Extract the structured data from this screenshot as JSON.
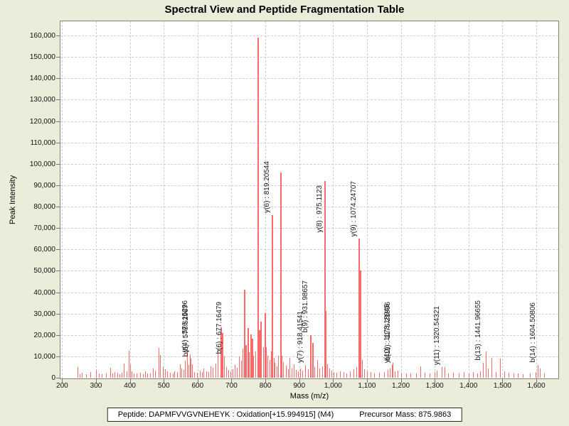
{
  "title": "Spectral View and Peptide Fragmentation Table",
  "footer": {
    "peptide": "Peptide: DAPMFVVGVNEHEYK : Oxidation[+15.994915] (M4)",
    "precursor": "Precursor Mass: 875.9863"
  },
  "chart_data": {
    "type": "bar",
    "subtype": "mass-spectrum-stick-plot",
    "title": "Spectral View and Peptide Fragmentation Table",
    "xlabel": "Mass (m/z)",
    "ylabel": "Peak Intensity",
    "xlim": [
      195,
      1665
    ],
    "ylim": [
      0,
      160000
    ],
    "x_ticks": [
      200,
      300,
      400,
      500,
      600,
      700,
      800,
      900,
      1000,
      1100,
      1200,
      1300,
      1400,
      1500,
      1600
    ],
    "y_ticks": [
      0,
      10000,
      20000,
      30000,
      40000,
      50000,
      60000,
      70000,
      80000,
      90000,
      100000,
      110000,
      120000,
      130000,
      140000,
      150000,
      160000
    ],
    "grid": "dashed",
    "legend": "none",
    "colors": {
      "peak": "#f96a6a",
      "plot_background": "#ffffff",
      "window_background": "#ececda",
      "gridline": "#cfcfcf",
      "frame": "#848474"
    },
    "annotated_peaks": [
      {
        "label": "y(4) : 576.15296",
        "mz": 576.15,
        "intensity": 11000
      },
      {
        "label": "b(5) : 578.52967",
        "mz": 578.53,
        "intensity": 9000
      },
      {
        "label": "b(6) : 677.16479",
        "mz": 677.16,
        "intensity": 10000
      },
      {
        "label": "y(6) : 819.20544",
        "mz": 819.21,
        "intensity": 76000
      },
      {
        "label": "y(7) : 918.41541",
        "mz": 918.42,
        "intensity": 6000
      },
      {
        "label": "b(9) : 931.98657",
        "mz": 931.99,
        "intensity": 20000
      },
      {
        "label": "y(8) : 975.1123",
        "mz": 975.11,
        "intensity": 92000,
        "label_base": 67000
      },
      {
        "label": "y(9) : 1074.24707",
        "mz": 1074.25,
        "intensity": 65000
      },
      {
        "label": "y(10) : 1173.18945",
        "mz": 1173.19,
        "intensity": 6000
      },
      {
        "label": "b(11) : 1175.21896",
        "mz": 1175.22,
        "intensity": 7000
      },
      {
        "label": "y(11) : 1320.54321",
        "mz": 1320.54,
        "intensity": 5000
      },
      {
        "label": "b(13) : 1441.96655",
        "mz": 1441.97,
        "intensity": 7000
      },
      {
        "label": "b(14) : 1604.50806",
        "mz": 1604.51,
        "intensity": 6000
      }
    ],
    "peaks": [
      [
        245,
        5000
      ],
      [
        252,
        1600
      ],
      [
        258,
        2300
      ],
      [
        270,
        1500
      ],
      [
        283,
        2600
      ],
      [
        300,
        3600
      ],
      [
        308,
        1900
      ],
      [
        316,
        1600
      ],
      [
        330,
        1900
      ],
      [
        342,
        4600
      ],
      [
        348,
        2100
      ],
      [
        355,
        2700
      ],
      [
        362,
        2300
      ],
      [
        369,
        1600
      ],
      [
        375,
        2300
      ],
      [
        382,
        6600
      ],
      [
        390,
        3100
      ],
      [
        397,
        12600
      ],
      [
        400,
        6200
      ],
      [
        404,
        3100
      ],
      [
        412,
        2100
      ],
      [
        420,
        1900
      ],
      [
        430,
        2300
      ],
      [
        438,
        1600
      ],
      [
        445,
        3100
      ],
      [
        452,
        2100
      ],
      [
        460,
        1900
      ],
      [
        468,
        4300
      ],
      [
        475,
        3300
      ],
      [
        485,
        14000
      ],
      [
        490,
        10600
      ],
      [
        497,
        5100
      ],
      [
        503,
        3900
      ],
      [
        510,
        2900
      ],
      [
        518,
        2300
      ],
      [
        526,
        1900
      ],
      [
        532,
        3100
      ],
      [
        540,
        2700
      ],
      [
        548,
        6300
      ],
      [
        553,
        4300
      ],
      [
        558,
        3500
      ],
      [
        563,
        8100
      ],
      [
        568,
        12600
      ],
      [
        572,
        6100
      ],
      [
        583,
        6300
      ],
      [
        590,
        2700
      ],
      [
        598,
        2300
      ],
      [
        606,
        3300
      ],
      [
        612,
        2700
      ],
      [
        618,
        4300
      ],
      [
        625,
        3100
      ],
      [
        632,
        2500
      ],
      [
        638,
        5300
      ],
      [
        645,
        4700
      ],
      [
        652,
        6600
      ],
      [
        660,
        13600
      ],
      [
        668,
        23600
      ],
      [
        671,
        21000
      ],
      [
        684,
        5100
      ],
      [
        690,
        3600
      ],
      [
        697,
        3100
      ],
      [
        703,
        4100
      ],
      [
        710,
        6100
      ],
      [
        716,
        4600
      ],
      [
        722,
        10100
      ],
      [
        728,
        8100
      ],
      [
        733,
        13700
      ],
      [
        736,
        41000
      ],
      [
        740,
        15200
      ],
      [
        744,
        9100
      ],
      [
        748,
        23200
      ],
      [
        752,
        12100
      ],
      [
        756,
        20300
      ],
      [
        760,
        18200
      ],
      [
        764,
        10200
      ],
      [
        770,
        12300
      ],
      [
        776,
        159000
      ],
      [
        780,
        22200
      ],
      [
        786,
        26300
      ],
      [
        793,
        14200
      ],
      [
        797,
        30200
      ],
      [
        801,
        14300
      ],
      [
        806,
        10300
      ],
      [
        812,
        8200
      ],
      [
        816,
        12400
      ],
      [
        824,
        9200
      ],
      [
        828,
        7100
      ],
      [
        833,
        5200
      ],
      [
        838,
        10400
      ],
      [
        844,
        96000
      ],
      [
        849,
        10200
      ],
      [
        853,
        7200
      ],
      [
        860,
        5600
      ],
      [
        866,
        4100
      ],
      [
        872,
        9300
      ],
      [
        878,
        4300
      ],
      [
        884,
        6300
      ],
      [
        890,
        3600
      ],
      [
        896,
        3100
      ],
      [
        903,
        4300
      ],
      [
        910,
        3300
      ],
      [
        925,
        4100
      ],
      [
        938,
        16200
      ],
      [
        944,
        5100
      ],
      [
        953,
        8300
      ],
      [
        960,
        4300
      ],
      [
        968,
        5200
      ],
      [
        977,
        31200
      ],
      [
        982,
        6200
      ],
      [
        988,
        4300
      ],
      [
        995,
        3300
      ],
      [
        1002,
        2700
      ],
      [
        1010,
        2300
      ],
      [
        1020,
        3100
      ],
      [
        1030,
        2600
      ],
      [
        1040,
        2100
      ],
      [
        1050,
        3100
      ],
      [
        1060,
        4100
      ],
      [
        1068,
        5100
      ],
      [
        1080,
        50000
      ],
      [
        1086,
        8200
      ],
      [
        1092,
        4100
      ],
      [
        1100,
        3100
      ],
      [
        1110,
        2600
      ],
      [
        1122,
        2100
      ],
      [
        1135,
        2300
      ],
      [
        1150,
        2600
      ],
      [
        1162,
        3600
      ],
      [
        1168,
        4300
      ],
      [
        1181,
        3100
      ],
      [
        1190,
        3300
      ],
      [
        1200,
        2300
      ],
      [
        1215,
        1900
      ],
      [
        1228,
        2100
      ],
      [
        1245,
        1900
      ],
      [
        1258,
        5300
      ],
      [
        1270,
        2300
      ],
      [
        1285,
        1900
      ],
      [
        1300,
        2600
      ],
      [
        1306,
        3400
      ],
      [
        1328,
        4900
      ],
      [
        1340,
        2100
      ],
      [
        1355,
        2300
      ],
      [
        1370,
        1900
      ],
      [
        1385,
        2700
      ],
      [
        1400,
        2100
      ],
      [
        1412,
        2500
      ],
      [
        1425,
        2100
      ],
      [
        1435,
        3100
      ],
      [
        1450,
        12200
      ],
      [
        1458,
        4300
      ],
      [
        1468,
        9200
      ],
      [
        1480,
        2500
      ],
      [
        1492,
        8900
      ],
      [
        1505,
        3100
      ],
      [
        1518,
        2300
      ],
      [
        1532,
        1900
      ],
      [
        1545,
        2100
      ],
      [
        1560,
        1700
      ],
      [
        1580,
        1900
      ],
      [
        1598,
        2600
      ],
      [
        1610,
        4300
      ],
      [
        1622,
        2100
      ]
    ]
  }
}
